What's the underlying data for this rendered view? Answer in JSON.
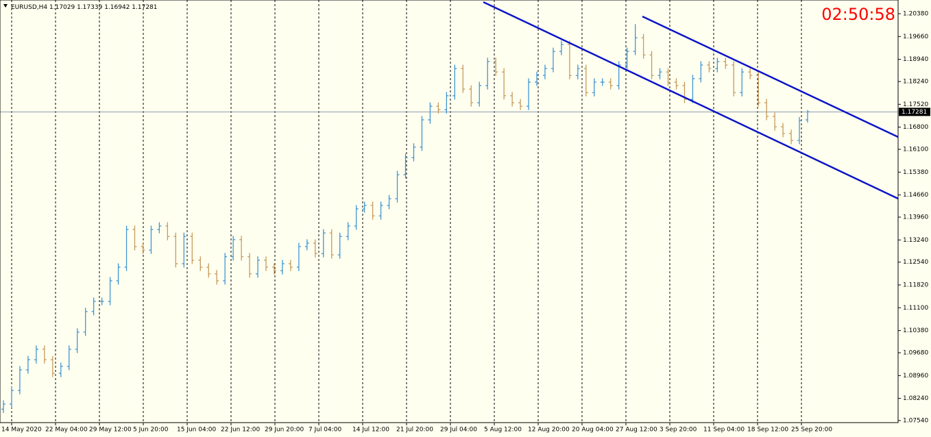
{
  "chart_data": {
    "type": "ohlc",
    "symbol": "EURUSD,H4",
    "timer": "02:50:58",
    "up_color": "#3f95d1",
    "down_color": "#c49a5a",
    "grid": true,
    "ylim": [
      1.07475,
      1.20812
    ],
    "yticks": [
      {
        "value": 1.2038,
        "label": "1.20380"
      },
      {
        "value": 1.1966,
        "label": "1.19660"
      },
      {
        "value": 1.1894,
        "label": "1.18940"
      },
      {
        "value": 1.1824,
        "label": "1.18240"
      },
      {
        "value": 1.1752,
        "label": "1.17520"
      },
      {
        "value": 1.168,
        "label": "1.16800"
      },
      {
        "value": 1.161,
        "label": "1.16100"
      },
      {
        "value": 1.1538,
        "label": "1.15380"
      },
      {
        "value": 1.1466,
        "label": "1.14660"
      },
      {
        "value": 1.1396,
        "label": "1.13960"
      },
      {
        "value": 1.1324,
        "label": "1.13240"
      },
      {
        "value": 1.1254,
        "label": "1.12540"
      },
      {
        "value": 1.1182,
        "label": "1.11820"
      },
      {
        "value": 1.111,
        "label": "1.11100"
      },
      {
        "value": 1.1038,
        "label": "1.10380"
      },
      {
        "value": 1.0968,
        "label": "1.09680"
      },
      {
        "value": 1.0896,
        "label": "1.08960"
      },
      {
        "value": 1.0824,
        "label": "1.08240"
      },
      {
        "value": 1.0754,
        "label": "1.07540"
      }
    ],
    "x_labels": [
      "14 May 2020",
      "22 May 04:00",
      "29 May 12:00",
      "5 Jun 20:00",
      "15 Jun 04:00",
      "22 Jun 12:00",
      "29 Jun 20:00",
      "7 Jul 04:00",
      "14 Jul 12:00",
      "21 Jul 20:00",
      "29 Jul 04:00",
      "5 Aug 12:00",
      "12 Aug 20:00",
      "20 Aug 04:00",
      "27 Aug 12:00",
      "3 Sep 20:00",
      "11 Sep 04:00",
      "18 Sep 12:00",
      "25 Sep 20:00"
    ],
    "open": [
      1.079,
      1.0806,
      1.0849,
      1.0914,
      1.0946,
      1.0979,
      1.0946,
      1.0903,
      1.0925,
      1.0979,
      1.1033,
      1.1098,
      1.113,
      1.113,
      1.1195,
      1.1238,
      1.1357,
      1.1303,
      1.1292,
      1.1357,
      1.1368,
      1.1335,
      1.1249,
      1.1335,
      1.126,
      1.1238,
      1.1217,
      1.1195,
      1.1271,
      1.1325,
      1.1271,
      1.1217,
      1.126,
      1.1238,
      1.1227,
      1.1249,
      1.1238,
      1.1303,
      1.1314,
      1.1281,
      1.1346,
      1.1277,
      1.1335,
      1.1368,
      1.1422,
      1.1433,
      1.14,
      1.1433,
      1.1454,
      1.153,
      1.1584,
      1.1617,
      1.1703,
      1.1746,
      1.1735,
      1.1779,
      1.1865,
      1.18,
      1.1757,
      1.1811,
      1.1887,
      1.1854,
      1.1779,
      1.1757,
      1.1746,
      1.1822,
      1.1843,
      1.1865,
      1.1919,
      1.1941,
      1.1843,
      1.1865,
      1.1789,
      1.1822,
      1.1822,
      1.1811,
      1.1876,
      1.1919,
      1.1962,
      1.1908,
      1.1843,
      1.1854,
      1.1822,
      1.1811,
      1.1768,
      1.1833,
      1.1876,
      1.1865,
      1.1887,
      1.1876,
      1.1789,
      1.1854,
      1.1843,
      1.1757,
      1.1714,
      1.1681,
      1.166,
      1.1638,
      1.17029
    ],
    "high": [
      1.0818,
      1.0861,
      1.0926,
      1.0958,
      1.0991,
      1.0991,
      1.0958,
      1.0937,
      1.0991,
      1.1045,
      1.111,
      1.1142,
      1.1142,
      1.1207,
      1.125,
      1.1369,
      1.1369,
      1.1315,
      1.1369,
      1.138,
      1.138,
      1.1347,
      1.1347,
      1.1347,
      1.1272,
      1.125,
      1.1229,
      1.1283,
      1.1337,
      1.1337,
      1.1283,
      1.1272,
      1.1272,
      1.125,
      1.1261,
      1.1261,
      1.1315,
      1.1326,
      1.1326,
      1.1358,
      1.1358,
      1.1347,
      1.138,
      1.1434,
      1.1445,
      1.1445,
      1.1445,
      1.1466,
      1.1542,
      1.1596,
      1.1629,
      1.1715,
      1.1758,
      1.1758,
      1.1791,
      1.1877,
      1.1877,
      1.1812,
      1.1823,
      1.1899,
      1.1899,
      1.1866,
      1.1791,
      1.1769,
      1.1834,
      1.1855,
      1.1877,
      1.1931,
      1.1953,
      1.1953,
      1.1877,
      1.1877,
      1.1834,
      1.1834,
      1.1834,
      1.1888,
      1.1931,
      1.2005,
      1.1974,
      1.192,
      1.1866,
      1.1866,
      1.1834,
      1.1823,
      1.1845,
      1.1888,
      1.1888,
      1.1899,
      1.1899,
      1.1888,
      1.1866,
      1.1866,
      1.1855,
      1.1769,
      1.1726,
      1.1693,
      1.1672,
      1.1712,
      1.17339
    ],
    "low": [
      1.0778,
      1.0794,
      1.0837,
      1.0902,
      1.0934,
      1.0934,
      1.0891,
      1.0891,
      1.0913,
      1.0967,
      1.1021,
      1.1086,
      1.1118,
      1.1118,
      1.1183,
      1.1226,
      1.1291,
      1.128,
      1.128,
      1.1345,
      1.1323,
      1.1237,
      1.1237,
      1.1248,
      1.1226,
      1.1205,
      1.1183,
      1.1183,
      1.1259,
      1.1259,
      1.1205,
      1.1205,
      1.1226,
      1.1215,
      1.1215,
      1.1226,
      1.1226,
      1.1291,
      1.1269,
      1.1269,
      1.1265,
      1.1265,
      1.1323,
      1.1356,
      1.141,
      1.1388,
      1.1388,
      1.1421,
      1.1442,
      1.1518,
      1.1572,
      1.1605,
      1.1691,
      1.1723,
      1.1723,
      1.1767,
      1.1788,
      1.1745,
      1.1745,
      1.1799,
      1.1842,
      1.1767,
      1.1745,
      1.1734,
      1.1734,
      1.181,
      1.1831,
      1.1853,
      1.1907,
      1.1831,
      1.1831,
      1.1777,
      1.1777,
      1.181,
      1.1799,
      1.1799,
      1.1864,
      1.1907,
      1.1896,
      1.1831,
      1.1831,
      1.181,
      1.1799,
      1.1756,
      1.1756,
      1.1821,
      1.1853,
      1.1853,
      1.1864,
      1.1777,
      1.1777,
      1.1831,
      1.1745,
      1.1702,
      1.1669,
      1.1648,
      1.1626,
      1.1626,
      1.16942
    ],
    "close": [
      1.0806,
      1.0849,
      1.0914,
      1.0946,
      1.0979,
      1.0946,
      1.0903,
      1.0925,
      1.0979,
      1.1033,
      1.1098,
      1.113,
      1.113,
      1.1195,
      1.1238,
      1.1357,
      1.1303,
      1.1292,
      1.1357,
      1.1368,
      1.1335,
      1.1249,
      1.1335,
      1.126,
      1.1238,
      1.1217,
      1.1195,
      1.1271,
      1.1325,
      1.1271,
      1.1217,
      1.126,
      1.1238,
      1.1227,
      1.1249,
      1.1238,
      1.1303,
      1.1314,
      1.1281,
      1.1346,
      1.1277,
      1.1335,
      1.1368,
      1.1422,
      1.1433,
      1.14,
      1.1433,
      1.1454,
      1.153,
      1.1584,
      1.1617,
      1.1703,
      1.1746,
      1.1735,
      1.1779,
      1.1865,
      1.18,
      1.1757,
      1.1811,
      1.1887,
      1.1854,
      1.1779,
      1.1757,
      1.1746,
      1.1822,
      1.1843,
      1.1865,
      1.1919,
      1.1941,
      1.1843,
      1.1865,
      1.1789,
      1.1822,
      1.1822,
      1.1811,
      1.1876,
      1.1919,
      1.1962,
      1.1908,
      1.1843,
      1.1854,
      1.1822,
      1.1811,
      1.1768,
      1.1833,
      1.1876,
      1.1865,
      1.1887,
      1.1876,
      1.1789,
      1.1854,
      1.1843,
      1.1757,
      1.1714,
      1.1681,
      1.166,
      1.1638,
      1.17,
      1.17281
    ]
  }
}
